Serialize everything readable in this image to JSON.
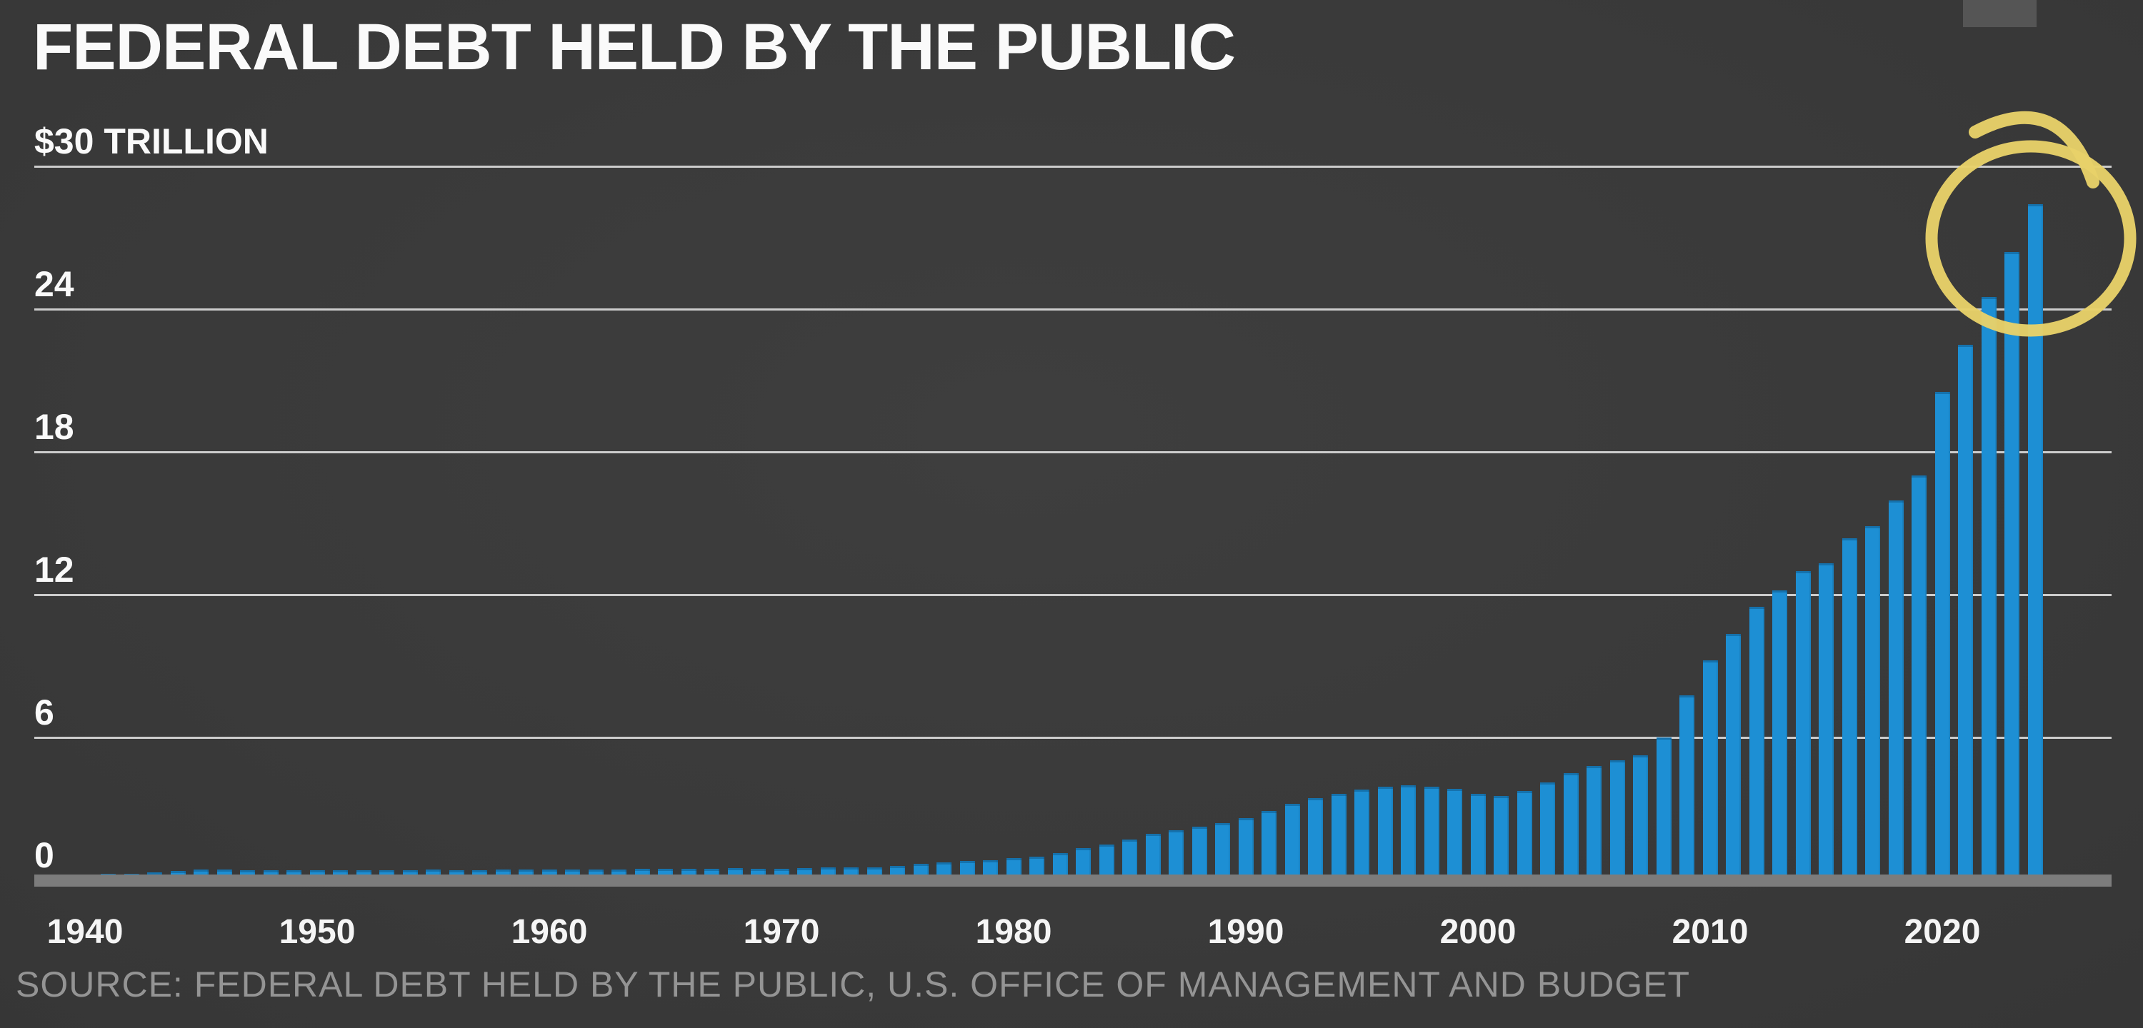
{
  "title": "FEDERAL DEBT HELD BY THE PUBLIC",
  "source": "SOURCE: FEDERAL DEBT HELD BY THE PUBLIC, U.S. OFFICE OF MANAGEMENT AND BUDGET",
  "colors": {
    "background": "#3a3a3a",
    "bar": "#1d8fd4",
    "gridline": "#d9d9d9",
    "axis_line": "#7c7c7c",
    "text_primary": "#fafafa",
    "text_muted": "#949494",
    "annotation_yellow": "#e8d169",
    "corner_rect": "#555555"
  },
  "chart_data": {
    "type": "bar",
    "title": "FEDERAL DEBT HELD BY THE PUBLIC",
    "units": "trillions of U.S. dollars",
    "start_year": 1940,
    "end_year": 2024,
    "values": [
      0.04,
      0.05,
      0.07,
      0.13,
      0.18,
      0.24,
      0.24,
      0.22,
      0.22,
      0.21,
      0.22,
      0.21,
      0.21,
      0.22,
      0.22,
      0.23,
      0.22,
      0.22,
      0.23,
      0.24,
      0.24,
      0.24,
      0.25,
      0.25,
      0.26,
      0.26,
      0.26,
      0.27,
      0.29,
      0.28,
      0.28,
      0.3,
      0.32,
      0.34,
      0.34,
      0.39,
      0.48,
      0.55,
      0.61,
      0.64,
      0.71,
      0.78,
      0.92,
      1.13,
      1.3,
      1.5,
      1.74,
      1.89,
      2.05,
      2.19,
      2.41,
      2.69,
      3.0,
      3.25,
      3.43,
      3.6,
      3.73,
      3.77,
      3.72,
      3.63,
      3.41,
      3.32,
      3.54,
      3.91,
      4.3,
      4.59,
      4.83,
      5.04,
      5.8,
      7.55,
      9.02,
      10.13,
      11.28,
      11.98,
      12.78,
      13.12,
      14.17,
      14.67,
      15.75,
      16.8,
      20.3,
      22.3,
      24.3,
      26.2,
      28.2
    ],
    "x_tick_labels": [
      "1940",
      "1950",
      "1960",
      "1970",
      "1980",
      "1990",
      "2000",
      "2010",
      "2020"
    ],
    "y_ticks": [
      {
        "value": 30,
        "label": "$30 TRILLION"
      },
      {
        "value": 24,
        "label": "24"
      },
      {
        "value": 18,
        "label": "18"
      },
      {
        "value": 12,
        "label": "12"
      },
      {
        "value": 6,
        "label": "6"
      },
      {
        "value": 0,
        "label": "0"
      }
    ],
    "ylim": [
      0,
      30
    ],
    "grid": "horizontal",
    "legend": "none",
    "annotation": {
      "shape": "hand-drawn circle",
      "highlights": "tallest bars at right (2021-2024, roughly $22-$28 trillion)",
      "color": "#e8d169"
    }
  }
}
